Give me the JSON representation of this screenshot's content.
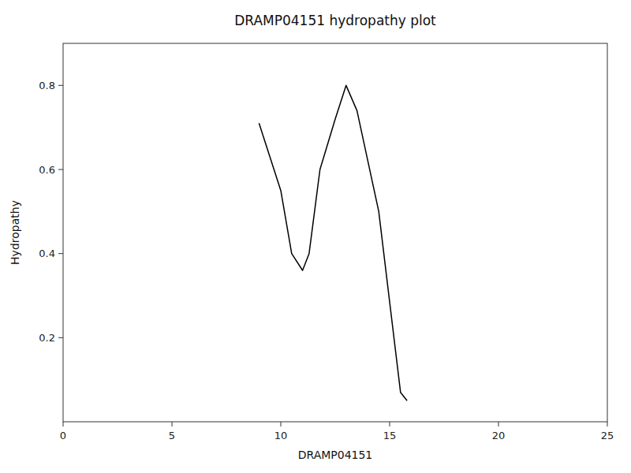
{
  "chart_data": {
    "type": "line",
    "title": "DRAMP04151 hydropathy plot",
    "xlabel": "DRAMP04151",
    "ylabel": "Hydropathy",
    "x": [
      9.0,
      10.0,
      10.5,
      11.0,
      11.3,
      11.8,
      12.5,
      13.0,
      13.5,
      14.0,
      14.5,
      15.5,
      15.8
    ],
    "values": [
      0.71,
      0.55,
      0.4,
      0.36,
      0.4,
      0.6,
      0.72,
      0.8,
      0.74,
      0.62,
      0.5,
      0.07,
      0.05
    ],
    "color": "#000000",
    "xlim": [
      0,
      25
    ],
    "ylim": [
      0,
      0.9
    ],
    "xticks": [
      0,
      5,
      10,
      15,
      20,
      25
    ],
    "yticks": [
      0.2,
      0.4,
      0.6,
      0.8
    ],
    "grid": false
  }
}
